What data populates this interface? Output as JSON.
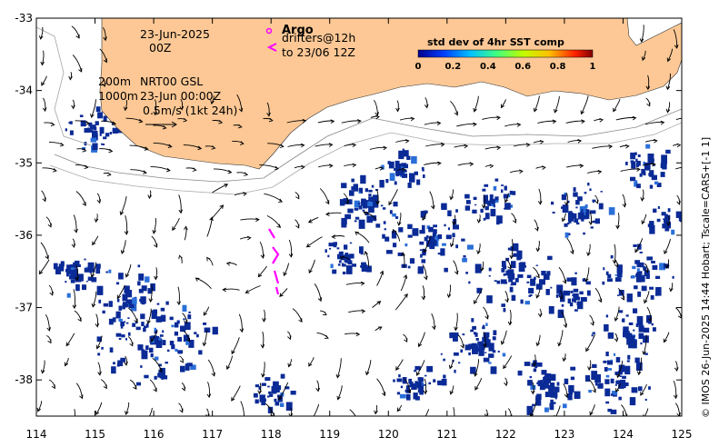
{
  "map": {
    "lon_range": [
      114,
      125
    ],
    "lat_range": [
      -38.5,
      -33
    ],
    "x_ticks": [
      "114",
      "115",
      "116",
      "117",
      "118",
      "119",
      "120",
      "121",
      "122",
      "123",
      "124",
      "125"
    ],
    "y_ticks": [
      "-33",
      "-34",
      "-35",
      "-36",
      "-37",
      "-38"
    ]
  },
  "annotations": {
    "date_line1": "23-Jun-2025",
    "date_line2": "00Z",
    "contour_200": "200m",
    "source": "NRT00 GSL",
    "contour_1000": "1000m",
    "valid_time": "23-Jun 00:00Z",
    "scale_label": "0.5m/s (1kt 24h)"
  },
  "argo": {
    "title": "Argo",
    "line1": "drifters@12h",
    "line2": "to 23/06 12Z",
    "color": "#ff00ff"
  },
  "colorbar": {
    "title": "std dev of 4hr SST comp",
    "ticks": [
      "0",
      "0.2",
      "0.4",
      "0.6",
      "0.8",
      "1"
    ]
  },
  "credit": "© IMOS 26-Jun-2025 14:44 Hobart; Tscale=CARS+[-1 1]",
  "colors": {
    "land": "#fdc895",
    "sst_patch": "#0a2a96",
    "frame": "#000000"
  }
}
